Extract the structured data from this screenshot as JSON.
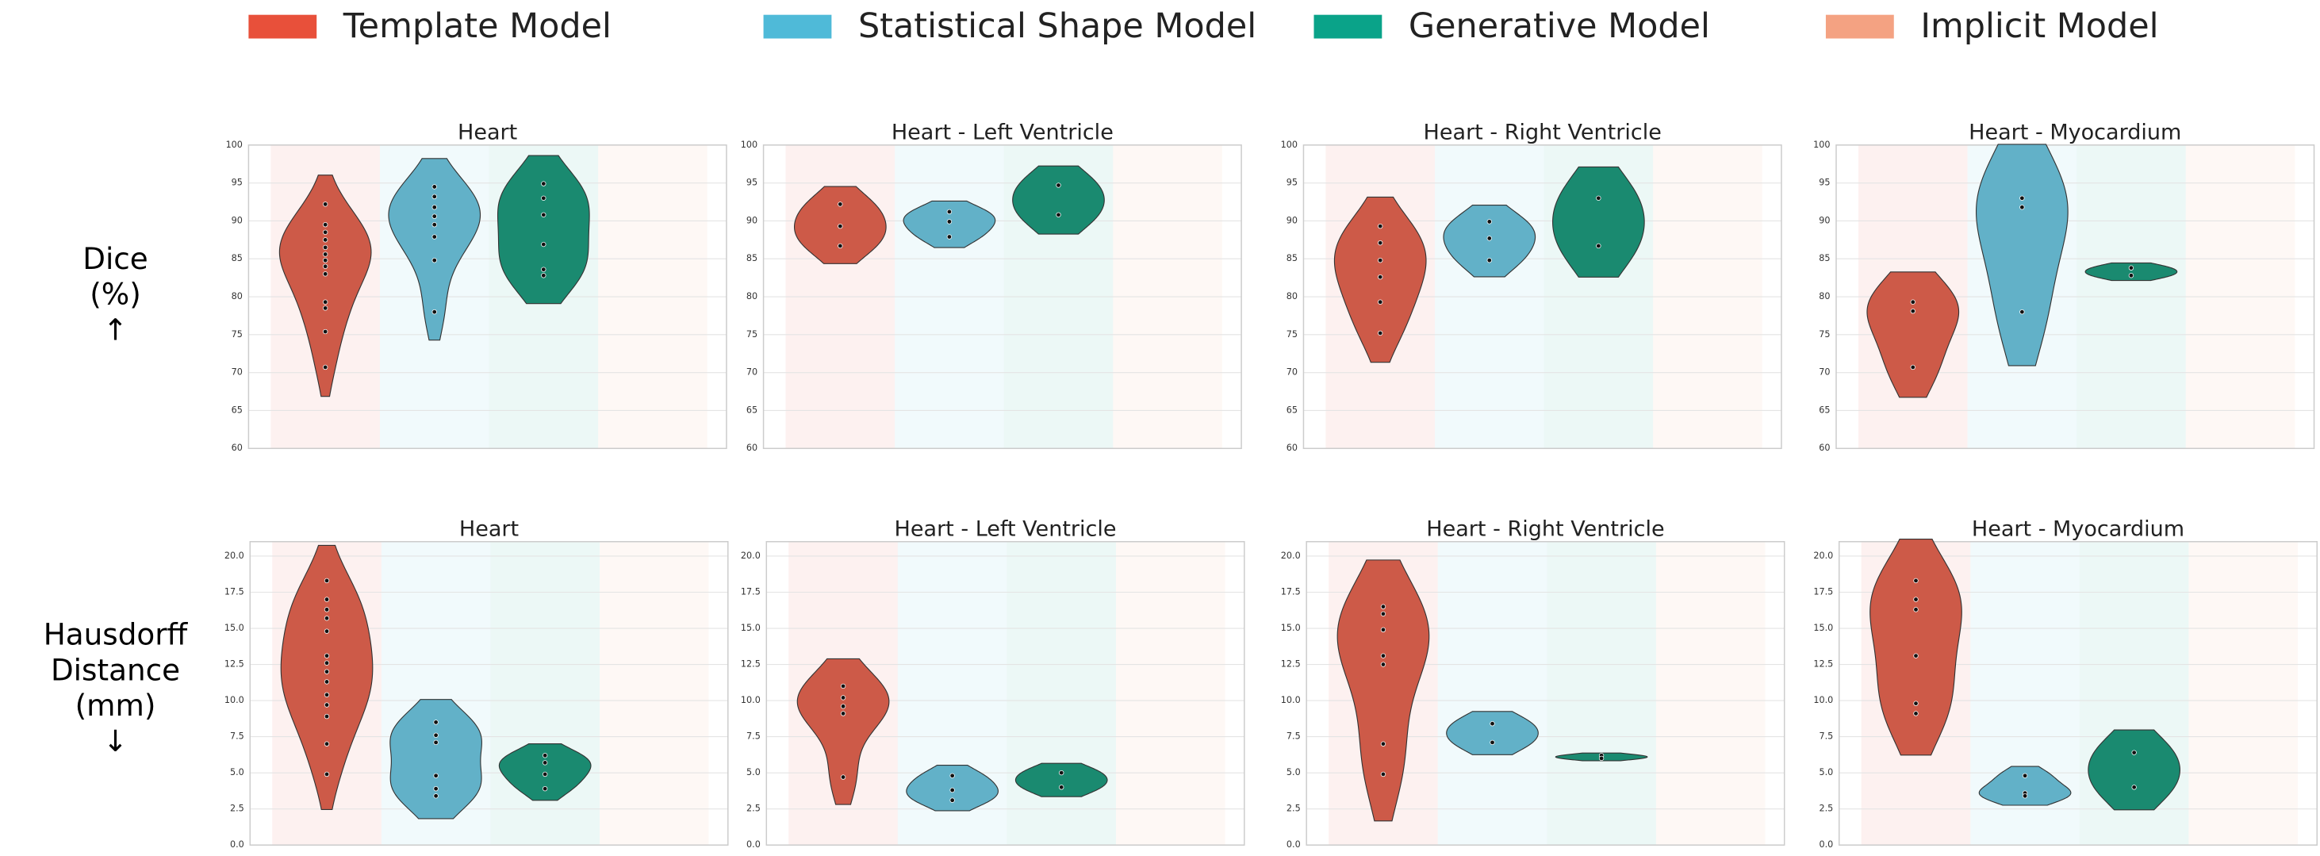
{
  "legend": {
    "items": [
      {
        "name": "Template Model",
        "color": "#e8503a"
      },
      {
        "name": "Statistical Shape Model",
        "color": "#4fbad8"
      },
      {
        "name": "Generative Model",
        "color": "#0aa389"
      },
      {
        "name": "Implicit Model",
        "color": "#f4a282"
      }
    ]
  },
  "violin_colors": [
    "#cd5a48",
    "#62b1c8",
    "#1a8a70",
    "#f4a582"
  ],
  "row_labels": [
    [
      "Dice",
      "(%)",
      "↑"
    ],
    [
      "Hausdorff",
      "Distance",
      "(mm)",
      "↓"
    ]
  ],
  "chart_data": [
    {
      "type": "violin",
      "title": "Heart",
      "ylim": [
        60,
        100
      ],
      "yticks": [
        60,
        65,
        70,
        75,
        80,
        85,
        90,
        95,
        100
      ],
      "series": [
        {
          "values": [
            92.2,
            89.5,
            88.5,
            87.5,
            86.5,
            85.6,
            84.8,
            84.0,
            83.0,
            79.3,
            78.5,
            75.4,
            70.7
          ]
        },
        {
          "values": [
            94.5,
            93.2,
            91.8,
            90.6,
            89.5,
            87.9,
            84.8,
            78.0
          ]
        },
        {
          "values": [
            94.9,
            93.0,
            90.8,
            86.9,
            83.6,
            82.8
          ]
        },
        {
          "values": []
        }
      ]
    },
    {
      "type": "violin",
      "title": "Heart - Left Ventricle",
      "ylim": [
        60,
        100
      ],
      "yticks": [
        60,
        65,
        70,
        75,
        80,
        85,
        90,
        95,
        100
      ],
      "series": [
        {
          "values": [
            92.2,
            89.3,
            86.7
          ]
        },
        {
          "values": [
            91.2,
            89.9,
            87.9
          ]
        },
        {
          "values": [
            94.7,
            90.8
          ]
        },
        {
          "values": []
        }
      ]
    },
    {
      "type": "violin",
      "title": "Heart - Right Ventricle",
      "ylim": [
        60,
        100
      ],
      "yticks": [
        60,
        65,
        70,
        75,
        80,
        85,
        90,
        95,
        100
      ],
      "series": [
        {
          "values": [
            89.3,
            87.1,
            84.8,
            82.6,
            79.3,
            75.2
          ]
        },
        {
          "values": [
            89.9,
            87.7,
            84.8
          ]
        },
        {
          "values": [
            93.0,
            86.7
          ]
        },
        {
          "values": []
        }
      ]
    },
    {
      "type": "violin",
      "title": "Heart - Myocardium",
      "ylim": [
        60,
        100
      ],
      "yticks": [
        60,
        65,
        70,
        75,
        80,
        85,
        90,
        95,
        100
      ],
      "series": [
        {
          "values": [
            79.3,
            78.1,
            70.7
          ]
        },
        {
          "values": [
            93.0,
            91.8,
            78.0
          ]
        },
        {
          "values": [
            83.8,
            82.8
          ]
        },
        {
          "values": []
        }
      ]
    },
    {
      "type": "violin",
      "title": "Heart",
      "ylim": [
        0,
        21
      ],
      "yticks": [
        {
          "value": 0,
          "label": "0.0"
        },
        2.5,
        {
          "value": 5,
          "label": "5.0"
        },
        7.5,
        {
          "value": 10,
          "label": "10.0"
        },
        12.5,
        {
          "value": 15,
          "label": "15.0"
        },
        17.5,
        {
          "value": 20,
          "label": "20.0"
        }
      ],
      "series": [
        {
          "values": [
            18.3,
            17.0,
            16.3,
            15.7,
            14.8,
            13.1,
            12.6,
            12.0,
            11.3,
            10.4,
            9.7,
            8.9,
            7.0,
            4.9
          ]
        },
        {
          "values": [
            8.5,
            7.6,
            7.1,
            4.8,
            3.9,
            3.4
          ]
        },
        {
          "values": [
            6.2,
            5.7,
            4.9,
            3.9
          ]
        },
        {
          "values": []
        }
      ]
    },
    {
      "type": "violin",
      "title": "Heart - Left Ventricle",
      "ylim": [
        0,
        21
      ],
      "yticks": [
        {
          "value": 0,
          "label": "0.0"
        },
        2.5,
        {
          "value": 5,
          "label": "5.0"
        },
        7.5,
        {
          "value": 10,
          "label": "10.0"
        },
        12.5,
        {
          "value": 15,
          "label": "15.0"
        },
        17.5,
        {
          "value": 20,
          "label": "20.0"
        }
      ],
      "series": [
        {
          "values": [
            11.0,
            10.2,
            9.6,
            9.1,
            4.7
          ]
        },
        {
          "values": [
            4.8,
            3.8,
            3.1
          ]
        },
        {
          "values": [
            5.0,
            4.0
          ]
        },
        {
          "values": []
        }
      ]
    },
    {
      "type": "violin",
      "title": "Heart - Right Ventricle",
      "ylim": [
        0,
        21
      ],
      "yticks": [
        {
          "value": 0,
          "label": "0.0"
        },
        2.5,
        {
          "value": 5,
          "label": "5.0"
        },
        7.5,
        {
          "value": 10,
          "label": "10.0"
        },
        12.5,
        {
          "value": 15,
          "label": "15.0"
        },
        17.5,
        {
          "value": 20,
          "label": "20.0"
        }
      ],
      "series": [
        {
          "values": [
            16.5,
            16.0,
            14.9,
            13.1,
            12.5,
            7.0,
            4.9
          ]
        },
        {
          "values": [
            8.4,
            7.1
          ]
        },
        {
          "values": [
            6.2,
            6.0
          ]
        },
        {
          "values": []
        }
      ]
    },
    {
      "type": "violin",
      "title": "Heart - Myocardium",
      "ylim": [
        0,
        21
      ],
      "yticks": [
        {
          "value": 0,
          "label": "0.0"
        },
        2.5,
        {
          "value": 5,
          "label": "5.0"
        },
        7.5,
        {
          "value": 10,
          "label": "10.0"
        },
        12.5,
        {
          "value": 15,
          "label": "15.0"
        },
        17.5,
        {
          "value": 20,
          "label": "20.0"
        }
      ],
      "series": [
        {
          "values": [
            18.3,
            17.0,
            16.3,
            13.1,
            9.8,
            9.1
          ]
        },
        {
          "values": [
            4.8,
            3.6,
            3.4
          ]
        },
        {
          "values": [
            6.4,
            4.0
          ]
        },
        {
          "values": []
        }
      ]
    }
  ]
}
